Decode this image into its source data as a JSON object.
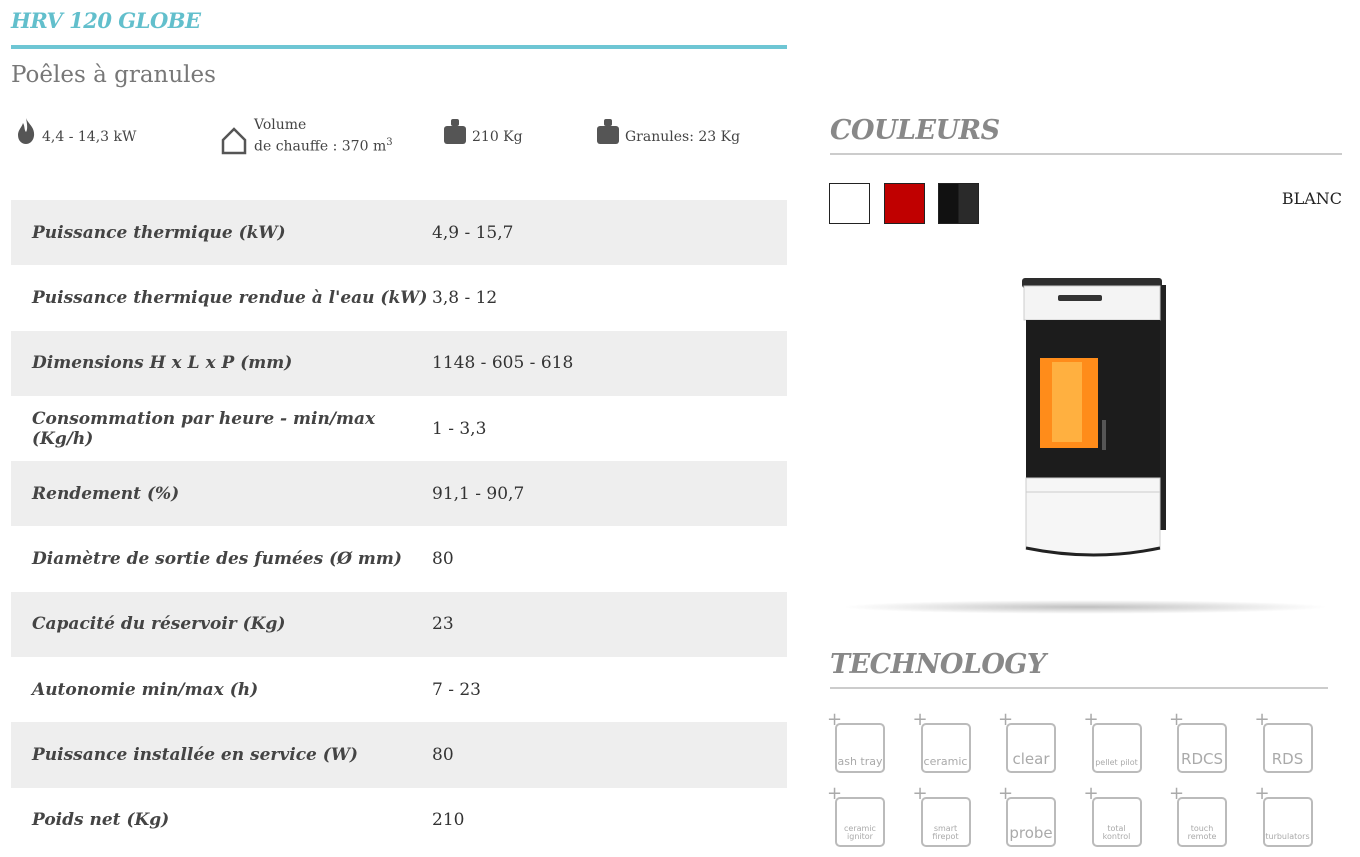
{
  "title": "HRV 120 GLOBE",
  "subtitle": "Poêles à granules",
  "features": [
    {
      "icon": "flame-icon",
      "text": "4,4 - 14,3 kW"
    },
    {
      "icon": "house-icon",
      "line1": "Volume",
      "line2": "de chauffe : 370 m",
      "sup": "3"
    },
    {
      "icon": "weight-icon",
      "text": "210 Kg"
    },
    {
      "icon": "weight-icon",
      "text": "Granules: 23 Kg"
    }
  ],
  "specs": [
    {
      "label": "Puissance thermique (kW)",
      "value": "4,9 - 15,7"
    },
    {
      "label": "Puissance thermique rendue à l'eau (kW)",
      "value": "3,8 - 12"
    },
    {
      "label": "Dimensions H x L x P (mm)",
      "value": "1148 - 605 - 618"
    },
    {
      "label": "Consommation par heure - min/max (Kg/h)",
      "value": "1 - 3,3"
    },
    {
      "label": "Rendement (%)",
      "value": "91,1 - 90,7"
    },
    {
      "label": "Diamètre de sortie des fumées (Ø mm)",
      "value": "80"
    },
    {
      "label": "Capacité du réservoir (Kg)",
      "value": "23"
    },
    {
      "label": "Autonomie min/max (h)",
      "value": "7 - 23"
    },
    {
      "label": "Puissance installée en service (W)",
      "value": "80"
    },
    {
      "label": "Poids net (Kg)",
      "value": "210"
    }
  ],
  "colors": {
    "heading": "COULEURS",
    "selected": "BLANC",
    "swatches": [
      "#ffffff",
      "#c00000",
      "#111111"
    ]
  },
  "technology": {
    "heading": "TECHNOLOGY",
    "items": [
      "ash tray",
      "ceramic",
      "clear",
      "pellet pilot",
      "RDCS",
      "RDS",
      "ceramic ignitor",
      "smart firepot",
      "probe",
      "total kontrol",
      "touch remote",
      "turbulators"
    ]
  },
  "accent": "#62bfcc"
}
